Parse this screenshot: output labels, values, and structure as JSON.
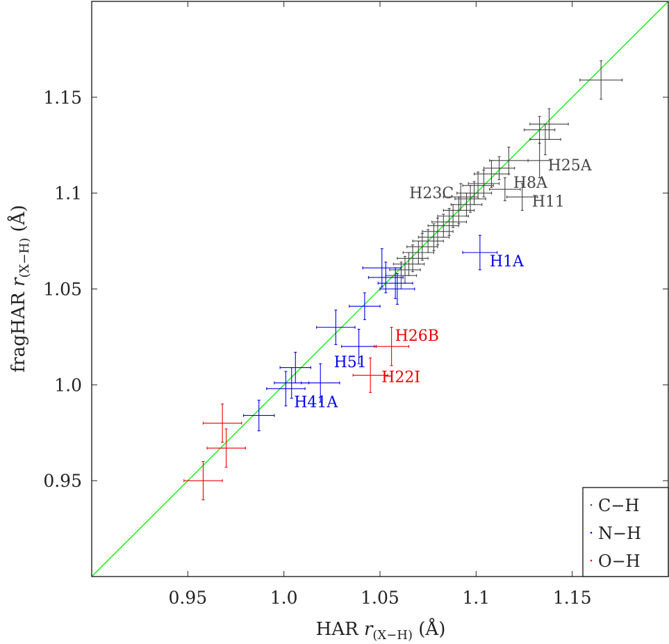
{
  "chart_data": {
    "type": "scatter",
    "title": "",
    "xlabel": {
      "prefix": "HAR ",
      "var": "r",
      "sub": "(X−H)",
      "unit": "(Å)"
    },
    "ylabel": {
      "prefix": "fragHAR ",
      "var": "r",
      "sub": "(X−H)",
      "unit": "(Å)"
    },
    "xlim": [
      0.9,
      1.2
    ],
    "ylim": [
      0.9,
      1.2
    ],
    "xticks": [
      0.95,
      1.0,
      1.05,
      1.1,
      1.15
    ],
    "yticks": [
      0.95,
      1.0,
      1.05,
      1.1,
      1.15
    ],
    "xtick_labels": [
      "0.95",
      "1.0",
      "1.05",
      "1.1",
      "1.15"
    ],
    "ytick_labels": [
      "0.95",
      "1.0",
      "1.05",
      "1.1",
      "1.15"
    ],
    "grid": false,
    "reference_line": {
      "type": "identity",
      "color": "#00ee00"
    },
    "legend": {
      "position": "bottom-right"
    },
    "series": [
      {
        "name": "C−H",
        "color": "#444444",
        "points": [
          {
            "x": 1.165,
            "y": 1.159,
            "xerr": 0.011,
            "yerr": 0.01
          },
          {
            "x": 1.133,
            "y": 1.133,
            "xerr": 0.008,
            "yerr": 0.007
          },
          {
            "x": 1.138,
            "y": 1.136,
            "xerr": 0.01,
            "yerr": 0.008
          },
          {
            "x": 1.136,
            "y": 1.128,
            "xerr": 0.008,
            "yerr": 0.008
          },
          {
            "x": 1.133,
            "y": 1.117,
            "xerr": 0.006,
            "yerr": 0.009,
            "label": "H25A"
          },
          {
            "x": 1.117,
            "y": 1.117,
            "xerr": 0.01,
            "yerr": 0.007
          },
          {
            "x": 1.112,
            "y": 1.113,
            "xerr": 0.008,
            "yerr": 0.006
          },
          {
            "x": 1.108,
            "y": 1.11,
            "xerr": 0.009,
            "yerr": 0.007
          },
          {
            "x": 1.104,
            "y": 1.105,
            "xerr": 0.008,
            "yerr": 0.007
          },
          {
            "x": 1.115,
            "y": 1.102,
            "xerr": 0.008,
            "yerr": 0.006,
            "label": "H8A"
          },
          {
            "x": 1.124,
            "y": 1.098,
            "xerr": 0.008,
            "yerr": 0.007,
            "label": "H11"
          },
          {
            "x": 1.101,
            "y": 1.104,
            "xerr": 0.008,
            "yerr": 0.007
          },
          {
            "x": 1.099,
            "y": 1.1,
            "xerr": 0.009,
            "yerr": 0.006
          },
          {
            "x": 1.097,
            "y": 1.097,
            "xerr": 0.008,
            "yerr": 0.007
          },
          {
            "x": 1.095,
            "y": 1.094,
            "xerr": 0.008,
            "yerr": 0.006
          },
          {
            "x": 1.092,
            "y": 1.098,
            "xerr": 0.009,
            "yerr": 0.007,
            "label": "H23C"
          },
          {
            "x": 1.091,
            "y": 1.091,
            "xerr": 0.008,
            "yerr": 0.007
          },
          {
            "x": 1.088,
            "y": 1.088,
            "xerr": 0.008,
            "yerr": 0.006
          },
          {
            "x": 1.086,
            "y": 1.085,
            "xerr": 0.009,
            "yerr": 0.007
          },
          {
            "x": 1.083,
            "y": 1.083,
            "xerr": 0.008,
            "yerr": 0.006
          },
          {
            "x": 1.08,
            "y": 1.08,
            "xerr": 0.008,
            "yerr": 0.007
          },
          {
            "x": 1.078,
            "y": 1.077,
            "xerr": 0.008,
            "yerr": 0.007
          },
          {
            "x": 1.075,
            "y": 1.075,
            "xerr": 0.008,
            "yerr": 0.006
          },
          {
            "x": 1.072,
            "y": 1.072,
            "xerr": 0.008,
            "yerr": 0.007
          },
          {
            "x": 1.07,
            "y": 1.069,
            "xerr": 0.008,
            "yerr": 0.006
          },
          {
            "x": 1.067,
            "y": 1.066,
            "xerr": 0.008,
            "yerr": 0.007
          },
          {
            "x": 1.065,
            "y": 1.063,
            "xerr": 0.008,
            "yerr": 0.006
          },
          {
            "x": 1.063,
            "y": 1.06,
            "xerr": 0.008,
            "yerr": 0.007
          },
          {
            "x": 1.061,
            "y": 1.057,
            "xerr": 0.008,
            "yerr": 0.007
          }
        ]
      },
      {
        "name": "N−H",
        "color": "#0000ee",
        "points": [
          {
            "x": 1.102,
            "y": 1.069,
            "xerr": 0.009,
            "yerr": 0.009,
            "label": "H1A"
          },
          {
            "x": 1.051,
            "y": 1.061,
            "xerr": 0.01,
            "yerr": 0.01
          },
          {
            "x": 1.053,
            "y": 1.056,
            "xerr": 0.009,
            "yerr": 0.008
          },
          {
            "x": 1.058,
            "y": 1.053,
            "xerr": 0.009,
            "yerr": 0.008
          },
          {
            "x": 1.059,
            "y": 1.05,
            "xerr": 0.009,
            "yerr": 0.008
          },
          {
            "x": 1.042,
            "y": 1.041,
            "xerr": 0.008,
            "yerr": 0.007
          },
          {
            "x": 1.027,
            "y": 1.03,
            "xerr": 0.01,
            "yerr": 0.009
          },
          {
            "x": 1.039,
            "y": 1.02,
            "xerr": 0.009,
            "yerr": 0.009,
            "label": "H51"
          },
          {
            "x": 1.006,
            "y": 1.009,
            "xerr": 0.008,
            "yerr": 0.008
          },
          {
            "x": 1.004,
            "y": 1.001,
            "xerr": 0.009,
            "yerr": 0.008
          },
          {
            "x": 1.001,
            "y": 0.998,
            "xerr": 0.01,
            "yerr": 0.009
          },
          {
            "x": 1.019,
            "y": 1.001,
            "xerr": 0.01,
            "yerr": 0.01,
            "label": "H41A"
          },
          {
            "x": 0.987,
            "y": 0.984,
            "xerr": 0.008,
            "yerr": 0.008
          }
        ]
      },
      {
        "name": "O−H",
        "color": "#ee0000",
        "points": [
          {
            "x": 1.056,
            "y": 1.02,
            "xerr": 0.009,
            "yerr": 0.01,
            "label": "H26B"
          },
          {
            "x": 1.045,
            "y": 1.005,
            "xerr": 0.009,
            "yerr": 0.009,
            "label": "H22I"
          },
          {
            "x": 0.968,
            "y": 0.98,
            "xerr": 0.01,
            "yerr": 0.01
          },
          {
            "x": 0.97,
            "y": 0.967,
            "xerr": 0.01,
            "yerr": 0.01
          },
          {
            "x": 0.958,
            "y": 0.95,
            "xerr": 0.01,
            "yerr": 0.01
          }
        ]
      }
    ]
  }
}
